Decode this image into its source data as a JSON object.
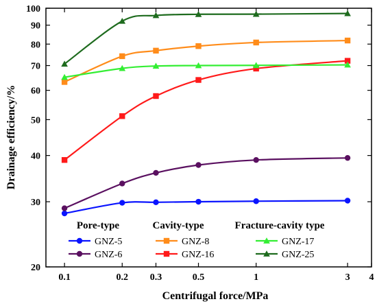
{
  "chart_data": {
    "type": "line",
    "xlabel": "Centrifugal force/MPa",
    "ylabel": "Drainage efficiency/%",
    "x_scale": "log",
    "y_scale": "log",
    "xlim": [
      0.08,
      4
    ],
    "ylim": [
      20,
      100
    ],
    "x_ticks": [
      0.1,
      0.2,
      0.3,
      0.5,
      1,
      3,
      4
    ],
    "x_tick_labels": [
      "0.1",
      "0.2",
      "0.3",
      "0.5",
      "1",
      "3",
      "4"
    ],
    "y_ticks": [
      20,
      30,
      40,
      50,
      60,
      70,
      80,
      90,
      100
    ],
    "y_tick_labels": [
      "20",
      "30",
      "40",
      "50",
      "60",
      "70",
      "80",
      "90",
      "100"
    ],
    "grid": false,
    "legend_position": "bottom",
    "legend_groups": [
      "Pore-type",
      "Cavity-type",
      "Fracture-cavity type"
    ],
    "x": [
      0.1,
      0.2,
      0.3,
      0.5,
      1,
      3
    ],
    "series": [
      {
        "name": "GNZ-5",
        "group": 0,
        "color": "#0a14ff",
        "marker": "circle",
        "values": [
          27.9,
          29.8,
          29.9,
          30.0,
          30.1,
          30.2
        ]
      },
      {
        "name": "GNZ-6",
        "group": 0,
        "color": "#5a1060",
        "marker": "circle",
        "values": [
          28.8,
          33.6,
          35.9,
          37.7,
          38.9,
          39.4
        ]
      },
      {
        "name": "GNZ-8",
        "group": 1,
        "color": "#ff8c1a",
        "marker": "square",
        "values": [
          63.2,
          74.2,
          76.8,
          79.0,
          80.8,
          81.8
        ]
      },
      {
        "name": "GNZ-16",
        "group": 1,
        "color": "#ff1a1a",
        "marker": "square",
        "values": [
          38.9,
          51.1,
          57.9,
          64.0,
          68.7,
          72.1
        ]
      },
      {
        "name": "GNZ-17",
        "group": 2,
        "color": "#33ee33",
        "marker": "triangle",
        "values": [
          65.1,
          68.8,
          69.8,
          70.0,
          70.1,
          70.3
        ]
      },
      {
        "name": "GNZ-25",
        "group": 2,
        "color": "#1e6b1e",
        "marker": "triangle",
        "values": [
          70.7,
          92.3,
          95.6,
          96.3,
          96.4,
          96.8
        ]
      }
    ]
  }
}
